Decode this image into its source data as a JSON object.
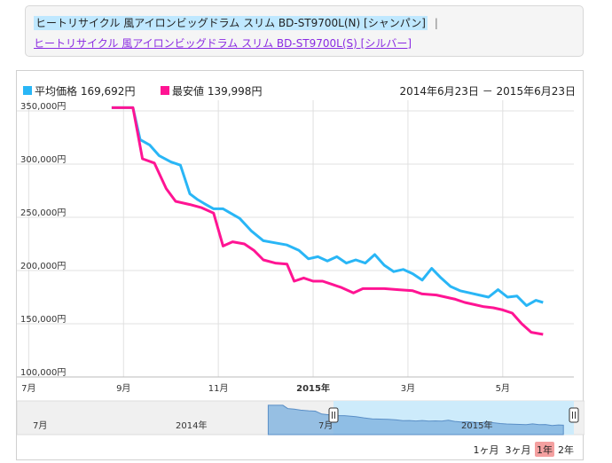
{
  "variants": {
    "current": "ヒートリサイクル 風アイロンビッグドラム スリム BD-ST9700L(N) [シャンパン]",
    "separator": "|",
    "other": "ヒートリサイクル 風アイロンビッグドラム スリム BD-ST9700L(S) [シルバー]"
  },
  "legend": {
    "avg_label": "平均価格 169,692円",
    "min_label": "最安値 139,998円",
    "date_range": "2014年6月23日 － 2015年6月23日"
  },
  "colors": {
    "avg": "#29b6f6",
    "min": "#ff1493",
    "grid": "#e0e0e0",
    "navigator_fill": "#cdebfb"
  },
  "navigator": {
    "labels": [
      {
        "text": "7月",
        "t": 0.0
      },
      {
        "text": "2014年",
        "t": 0.5
      },
      {
        "text": "7月",
        "t": 1.0
      },
      {
        "text": "2015年",
        "t": 1.5
      }
    ]
  },
  "range_buttons": [
    {
      "label": "1ヶ月",
      "active": false
    },
    {
      "label": "3ヶ月",
      "active": false
    },
    {
      "label": "1年",
      "active": true
    },
    {
      "label": "2年",
      "active": false
    }
  ],
  "chart_data": {
    "type": "line",
    "x_ticks": [
      {
        "label": "7月",
        "t": 0.0,
        "bold": false
      },
      {
        "label": "9月",
        "t": 2.0,
        "bold": false
      },
      {
        "label": "11月",
        "t": 4.0,
        "bold": false
      },
      {
        "label": "2015年",
        "t": 6.0,
        "bold": true
      },
      {
        "label": "3月",
        "t": 8.0,
        "bold": false
      },
      {
        "label": "5月",
        "t": 10.0,
        "bold": false
      }
    ],
    "y_ticks": [
      "100,000円",
      "150,000円",
      "200,000円",
      "250,000円",
      "300,000円",
      "350,000円"
    ],
    "ylim": [
      100000,
      360000
    ],
    "xlim": [
      -0.25,
      11.5
    ],
    "series": [
      {
        "name": "平均価格",
        "points": [
          [
            1.75,
            353000
          ],
          [
            2.2,
            353000
          ],
          [
            2.35,
            323000
          ],
          [
            2.55,
            318000
          ],
          [
            2.75,
            308000
          ],
          [
            3.0,
            302000
          ],
          [
            3.2,
            299000
          ],
          [
            3.4,
            272000
          ],
          [
            3.55,
            267000
          ],
          [
            3.7,
            263000
          ],
          [
            3.9,
            258000
          ],
          [
            4.1,
            258000
          ],
          [
            4.45,
            249000
          ],
          [
            4.7,
            237000
          ],
          [
            4.95,
            228000
          ],
          [
            5.2,
            226000
          ],
          [
            5.45,
            224000
          ],
          [
            5.7,
            219000
          ],
          [
            5.9,
            211000
          ],
          [
            6.1,
            213000
          ],
          [
            6.3,
            209000
          ],
          [
            6.5,
            213000
          ],
          [
            6.7,
            207000
          ],
          [
            6.9,
            210000
          ],
          [
            7.1,
            207000
          ],
          [
            7.3,
            215000
          ],
          [
            7.5,
            205000
          ],
          [
            7.7,
            199000
          ],
          [
            7.9,
            201000
          ],
          [
            8.1,
            197000
          ],
          [
            8.3,
            191000
          ],
          [
            8.5,
            202000
          ],
          [
            8.7,
            193000
          ],
          [
            8.9,
            185000
          ],
          [
            9.1,
            181000
          ],
          [
            9.3,
            179000
          ],
          [
            9.5,
            177000
          ],
          [
            9.7,
            175000
          ],
          [
            9.9,
            182000
          ],
          [
            10.1,
            175000
          ],
          [
            10.3,
            176000
          ],
          [
            10.5,
            167000
          ],
          [
            10.7,
            172000
          ],
          [
            10.85,
            170000
          ]
        ]
      },
      {
        "name": "最安値",
        "points": [
          [
            1.75,
            353000
          ],
          [
            2.2,
            353000
          ],
          [
            2.4,
            305000
          ],
          [
            2.65,
            301000
          ],
          [
            2.9,
            277000
          ],
          [
            3.1,
            265000
          ],
          [
            3.4,
            262000
          ],
          [
            3.65,
            259000
          ],
          [
            3.9,
            254000
          ],
          [
            4.1,
            223000
          ],
          [
            4.3,
            227000
          ],
          [
            4.55,
            225000
          ],
          [
            4.75,
            219000
          ],
          [
            4.95,
            210000
          ],
          [
            5.2,
            207000
          ],
          [
            5.45,
            206000
          ],
          [
            5.6,
            190000
          ],
          [
            5.8,
            193000
          ],
          [
            6.0,
            190000
          ],
          [
            6.2,
            190000
          ],
          [
            6.4,
            187000
          ],
          [
            6.6,
            184000
          ],
          [
            6.85,
            179000
          ],
          [
            7.05,
            183000
          ],
          [
            7.3,
            183000
          ],
          [
            7.5,
            183000
          ],
          [
            7.8,
            182000
          ],
          [
            8.1,
            181000
          ],
          [
            8.3,
            178000
          ],
          [
            8.6,
            177000
          ],
          [
            8.8,
            175000
          ],
          [
            9.0,
            173000
          ],
          [
            9.2,
            170000
          ],
          [
            9.4,
            168000
          ],
          [
            9.6,
            166000
          ],
          [
            9.8,
            165000
          ],
          [
            10.0,
            163000
          ],
          [
            10.2,
            160000
          ],
          [
            10.4,
            150000
          ],
          [
            10.6,
            142000
          ],
          [
            10.85,
            140000
          ]
        ]
      }
    ]
  }
}
